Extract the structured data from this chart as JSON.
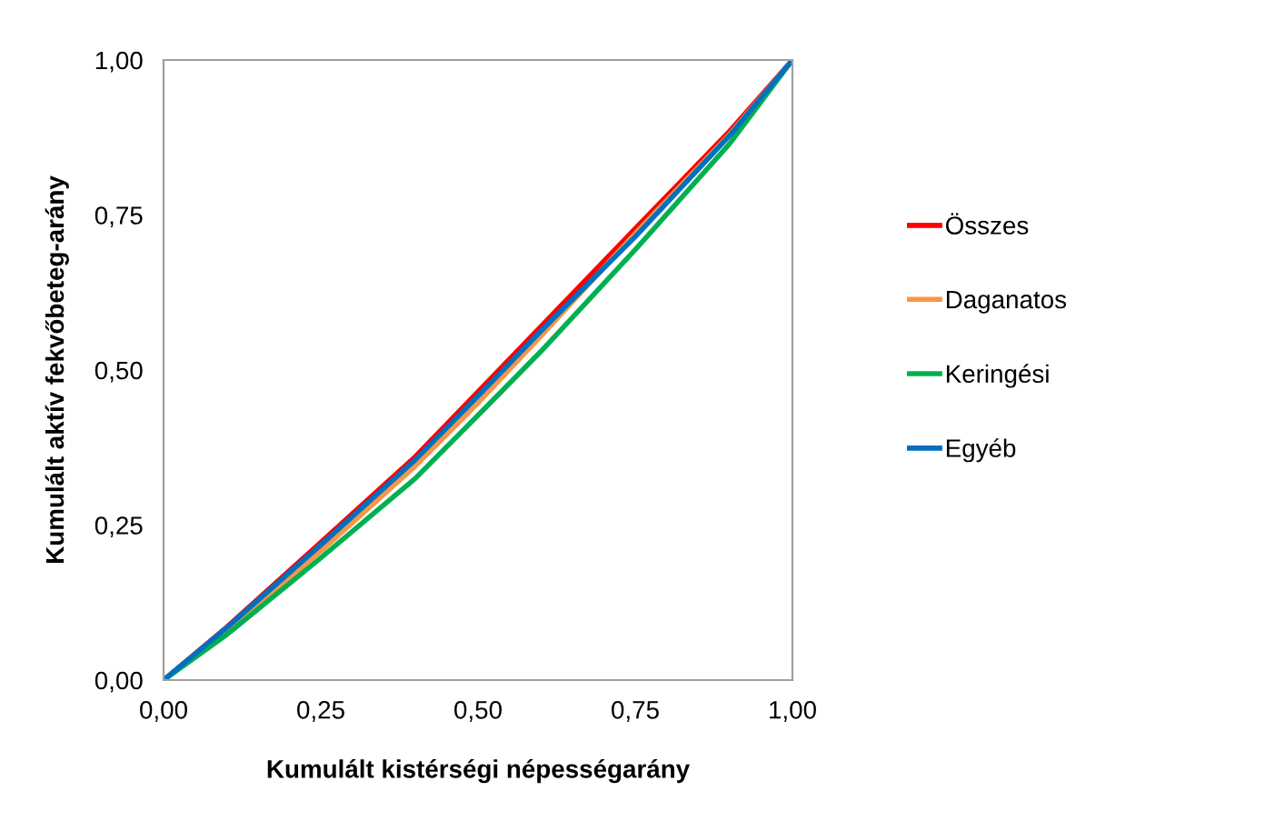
{
  "chart_data": {
    "type": "line",
    "xlabel": "Kumulált kistérségi népességarány",
    "ylabel": "Kumulált aktív fekvőbeteg-arány",
    "x": [
      0,
      0.1,
      0.25,
      0.4,
      0.5,
      0.6,
      0.75,
      0.9,
      1
    ],
    "series": [
      {
        "name": "Összes",
        "color": "#ff0000",
        "values": [
          0,
          0.085,
          0.222,
          0.36,
          0.465,
          0.57,
          0.728,
          0.885,
          1
        ]
      },
      {
        "name": "Daganatos",
        "color": "#f79646",
        "values": [
          0,
          0.08,
          0.208,
          0.345,
          0.447,
          0.555,
          0.72,
          0.88,
          1
        ]
      },
      {
        "name": "Keringési",
        "color": "#00b050",
        "values": [
          0,
          0.073,
          0.197,
          0.325,
          0.427,
          0.53,
          0.694,
          0.865,
          1
        ]
      },
      {
        "name": "Egyéb",
        "color": "#0070c0",
        "values": [
          0,
          0.084,
          0.218,
          0.355,
          0.458,
          0.563,
          0.715,
          0.878,
          1
        ]
      }
    ],
    "xlim": [
      0,
      1
    ],
    "ylim": [
      0,
      1
    ],
    "xticks": [
      {
        "value": 0,
        "label": "0,00"
      },
      {
        "value": 0.25,
        "label": "0,25"
      },
      {
        "value": 0.5,
        "label": "0,50"
      },
      {
        "value": 0.75,
        "label": "0,75"
      },
      {
        "value": 1,
        "label": "1,00"
      }
    ],
    "yticks": [
      {
        "value": 0,
        "label": "0,00"
      },
      {
        "value": 0.25,
        "label": "0,25"
      },
      {
        "value": 0.5,
        "label": "0,50"
      },
      {
        "value": 0.75,
        "label": "0,75"
      },
      {
        "value": 1,
        "label": "1,00"
      }
    ],
    "grid": false,
    "legend": "right",
    "marker": "none",
    "line_style": "solid"
  }
}
